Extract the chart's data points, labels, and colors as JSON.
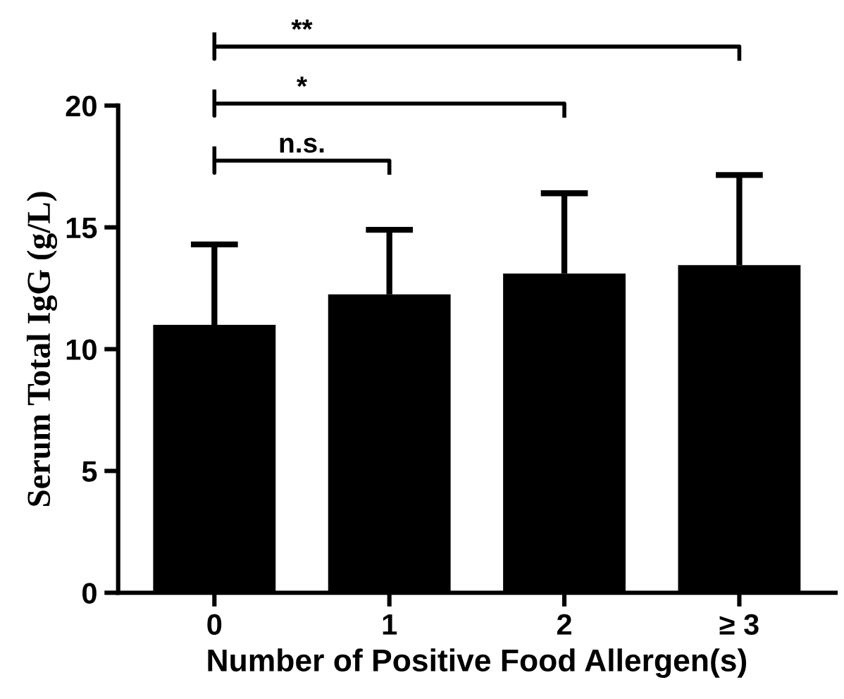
{
  "chart_data": {
    "type": "bar",
    "xlabel": "Number of Positive Food Allergen(s)",
    "ylabel": "Serum Total IgG (g/L)",
    "categories": [
      "0",
      "1",
      "2",
      "≥ 3"
    ],
    "values": [
      11.0,
      12.25,
      13.1,
      13.45
    ],
    "errors": [
      [
        11.0,
        14.3
      ],
      [
        12.25,
        14.9
      ],
      [
        13.1,
        16.4
      ],
      [
        13.45,
        17.15
      ]
    ],
    "color": "#000000",
    "ylim": [
      0,
      20
    ],
    "yticks": [
      0,
      5,
      10,
      15,
      20
    ],
    "grid": false,
    "legend": false,
    "annotations": [
      "n.s.",
      "*",
      "**"
    ]
  }
}
